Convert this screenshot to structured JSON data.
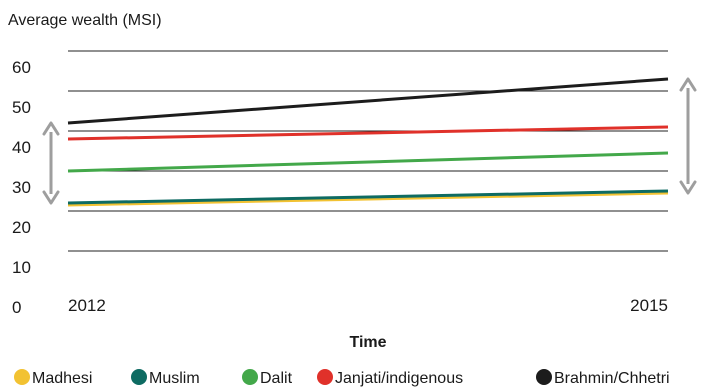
{
  "chart_data": {
    "type": "line",
    "ylabel": "Average wealth (MSI)",
    "xlabel": "Time",
    "x": [
      "2012",
      "2015"
    ],
    "ylim": [
      0,
      60
    ],
    "yticks": [
      "0",
      "10",
      "20",
      "30",
      "40",
      "50",
      "60"
    ],
    "grid": true,
    "legend_position": "bottom",
    "series": [
      {
        "name": "Madhesi",
        "color": "#f2c232",
        "values": [
          21.5,
          24.5
        ]
      },
      {
        "name": "Muslim",
        "color": "#0e6b62",
        "values": [
          22,
          25
        ]
      },
      {
        "name": "Dalit",
        "color": "#43a84a",
        "values": [
          30,
          34.5
        ]
      },
      {
        "name": "Janjati/indigenous",
        "color": "#e0312a",
        "values": [
          38,
          41
        ]
      },
      {
        "name": "Brahmin/Chhetri",
        "color": "#1c1c1c",
        "values": [
          42,
          53
        ]
      }
    ],
    "gap_arrows": [
      {
        "year": "2012",
        "range": [
          22,
          42
        ]
      },
      {
        "year": "2015",
        "range": [
          24.5,
          53
        ]
      }
    ]
  }
}
